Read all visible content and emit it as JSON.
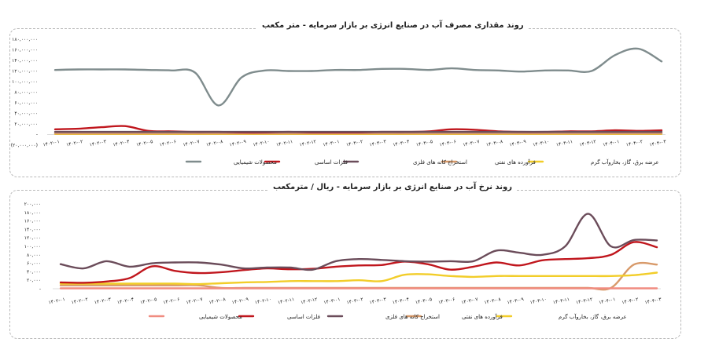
{
  "chart_data": [
    {
      "type": "line",
      "title": "روند مقداری مصرف آب در صنایع انرژی بر بازار سرمایه - متر مکعب",
      "categories": [
        "۱۴۰۲-۰۱",
        "۱۴۰۲-۰۲",
        "۱۴۰۲-۰۳",
        "۱۴۰۲-۰۴",
        "۱۴۰۲-۰۵",
        "۱۴۰۲-۰۶",
        "۱۴۰۲-۰۷",
        "۱۴۰۲-۰۸",
        "۱۴۰۲-۰۹",
        "۱۴۰۲-۱۰",
        "۱۴۰۲-۱۱",
        "۱۴۰۲-۱۲",
        "۱۴۰۳-۰۱",
        "۱۴۰۳-۰۲",
        "۱۴۰۳-۰۳",
        "۱۴۰۳-۰۴",
        "۱۴۰۳-۰۵",
        "۱۴۰۳-۰۶",
        "۱۴۰۳-۰۷",
        "۱۴۰۳-۰۸",
        "۱۴۰۳-۰۹",
        "۱۴۰۳-۱۰",
        "۱۴۰۳-۱۱",
        "۱۴۰۳-۱۲",
        "۱۴۰۴-۰۱",
        "۱۴۰۴-۰۲",
        "۱۴۰۴-۰۳"
      ],
      "y_ticks": [
        "۱۸۰,۰۰۰,۰۰۰",
        "۱۶۰,۰۰۰,۰۰۰",
        "۱۴۰,۰۰۰,۰۰۰",
        "۱۲۰,۰۰۰,۰۰۰",
        "۱۰۰,۰۰۰,۰۰۰",
        "۸۰,۰۰۰,۰۰۰",
        "۶۰,۰۰۰,۰۰۰",
        "۴۰,۰۰۰,۰۰۰",
        "۲۰,۰۰۰,۰۰۰",
        "-",
        "(۲۰,۰۰۰,۰۰۰)"
      ],
      "ylim": [
        -20000000,
        180000000
      ],
      "ytick_values": [
        180000000,
        160000000,
        140000000,
        120000000,
        100000000,
        80000000,
        60000000,
        40000000,
        20000000,
        0,
        -20000000
      ],
      "series": [
        {
          "name": "محصولات شیمیایی",
          "color": "#7f8c8d",
          "values": [
            122000000,
            123000000,
            123000000,
            123000000,
            122000000,
            121000000,
            117000000,
            55000000,
            108000000,
            121000000,
            120000000,
            120000000,
            122000000,
            122000000,
            124000000,
            124000000,
            122000000,
            125000000,
            122000000,
            121000000,
            119000000,
            121000000,
            121000000,
            120000000,
            150000000,
            162000000,
            138000000
          ]
        },
        {
          "name": "فلزات اساسی",
          "color": "#c0161d",
          "values": [
            10000000,
            11000000,
            14000000,
            16000000,
            7000000,
            6000000,
            5000000,
            5000000,
            4000000,
            4000000,
            5000000,
            4000000,
            4000000,
            4000000,
            5000000,
            5000000,
            6000000,
            10000000,
            9000000,
            6000000,
            5000000,
            5000000,
            6000000,
            6000000,
            8000000,
            7000000,
            8000000
          ]
        },
        {
          "name": "استخراج کانه های فلزی",
          "color": "#6b4c5a",
          "values": [
            5000000,
            5000000,
            5000000,
            5000000,
            5000000,
            5000000,
            5000000,
            5000000,
            5000000,
            5000000,
            5000000,
            5000000,
            5000000,
            5000000,
            5000000,
            5000000,
            5000000,
            5000000,
            5000000,
            5000000,
            5000000,
            5000000,
            5000000,
            5000000,
            5000000,
            5000000,
            5000000
          ]
        },
        {
          "name": "فرآورده های نفتی",
          "color": "#d89a6a",
          "values": [
            2000000,
            2000000,
            2000000,
            2000000,
            2000000,
            2000000,
            2000000,
            2000000,
            2000000,
            2000000,
            2000000,
            2000000,
            2000000,
            2000000,
            2000000,
            2000000,
            2000000,
            2000000,
            2000000,
            2000000,
            2000000,
            2000000,
            2000000,
            2000000,
            2000000,
            2000000,
            2000000
          ]
        },
        {
          "name": "عرضه برق، گاز، بخاروآب گرم",
          "color": "#f2cd29",
          "values": [
            1000000,
            1000000,
            1000000,
            1000000,
            1000000,
            1000000,
            1000000,
            1000000,
            1000000,
            1000000,
            1000000,
            1000000,
            1000000,
            1000000,
            1000000,
            1000000,
            1000000,
            1000000,
            1000000,
            1000000,
            1000000,
            1000000,
            1000000,
            1000000,
            1000000,
            1000000,
            1000000
          ]
        }
      ]
    },
    {
      "type": "line",
      "title": "روند نرخ آب در صنایع انرژی بر بازار سرمایه - ریال / مترمکعب",
      "categories": [
        "۱۴۰۲-۰۱",
        "۱۴۰۲-۰۲",
        "۱۴۰۲-۰۳",
        "۱۴۰۲-۰۴",
        "۱۴۰۲-۰۵",
        "۱۴۰۲-۰۶",
        "۱۴۰۲-۰۷",
        "۱۴۰۲-۰۸",
        "۱۴۰۲-۰۹",
        "۱۴۰۲-۱۰",
        "۱۴۰۲-۱۱",
        "۱۴۰۲-۱۲",
        "۱۴۰۳-۰۱",
        "۱۴۰۳-۰۲",
        "۱۴۰۳-۰۳",
        "۱۴۰۳-۰۴",
        "۱۴۰۳-۰۵",
        "۱۴۰۳-۰۶",
        "۱۴۰۳-۰۷",
        "۱۴۰۳-۰۸",
        "۱۴۰۳-۰۹",
        "۱۴۰۳-۱۰",
        "۱۴۰۳-۱۱",
        "۱۴۰۳-۱۲",
        "۱۴۰۴-۰۱",
        "۱۴۰۴-۰۲",
        "۱۴۰۴-۰۳"
      ],
      "y_ticks": [
        "۲۰۰,۰۰۰",
        "۱۸۰,۰۰۰",
        "۱۶۰,۰۰۰",
        "۱۴۰,۰۰۰",
        "۱۲۰,۰۰۰",
        "۱۰۰,۰۰۰",
        "۸۰,۰۰۰",
        "۶۰,۰۰۰",
        "۴۰,۰۰۰",
        "۲۰,۰۰۰",
        "-"
      ],
      "ylim": [
        0,
        200000
      ],
      "ytick_values": [
        200000,
        180000,
        160000,
        140000,
        120000,
        100000,
        80000,
        60000,
        40000,
        20000,
        0
      ],
      "series": [
        {
          "name": "محصولات شیمیایی",
          "color": "#f08c80",
          "values": [
            1000,
            1000,
            1000,
            1000,
            1000,
            1000,
            1000,
            1000,
            1000,
            1000,
            1000,
            1000,
            1000,
            1000,
            1000,
            1000,
            1000,
            1000,
            1000,
            1000,
            1000,
            1000,
            1000,
            1000,
            1000,
            1000,
            1000
          ]
        },
        {
          "name": "فلزات اساسی",
          "color": "#c0161d",
          "values": [
            15000,
            14000,
            17000,
            25000,
            53000,
            42000,
            37000,
            39000,
            44000,
            48000,
            46000,
            47000,
            52000,
            55000,
            56000,
            64000,
            58000,
            45000,
            52000,
            62000,
            55000,
            67000,
            70000,
            72000,
            80000,
            110000,
            98000
          ]
        },
        {
          "name": "استخراج کانه های فلزی",
          "color": "#6b4c5a",
          "values": [
            58000,
            48000,
            65000,
            52000,
            60000,
            62000,
            62000,
            57000,
            48000,
            50000,
            50000,
            45000,
            65000,
            70000,
            68000,
            65000,
            64000,
            65000,
            65000,
            90000,
            85000,
            80000,
            100000,
            177000,
            100000,
            115000,
            114000
          ]
        },
        {
          "name": "فرآورده های نفتی",
          "color": "#d89a6a",
          "values": [
            8000,
            8000,
            8000,
            8000,
            8000,
            8000,
            8000,
            2000,
            2000,
            2000,
            2000,
            2000,
            2000,
            2000,
            2000,
            2000,
            2000,
            2000,
            2000,
            2000,
            2000,
            2000,
            2000,
            2000,
            2000,
            57000,
            57000
          ]
        },
        {
          "name": "عرضه برق، گاز، بخاروآب گرم",
          "color": "#f2cd29",
          "values": [
            12000,
            12000,
            12000,
            12000,
            12000,
            12000,
            11000,
            13000,
            15000,
            16000,
            18000,
            18000,
            18000,
            20000,
            18000,
            33000,
            34000,
            30000,
            28000,
            30000,
            30000,
            30000,
            30000,
            30000,
            30000,
            32000,
            38000
          ]
        }
      ]
    }
  ]
}
